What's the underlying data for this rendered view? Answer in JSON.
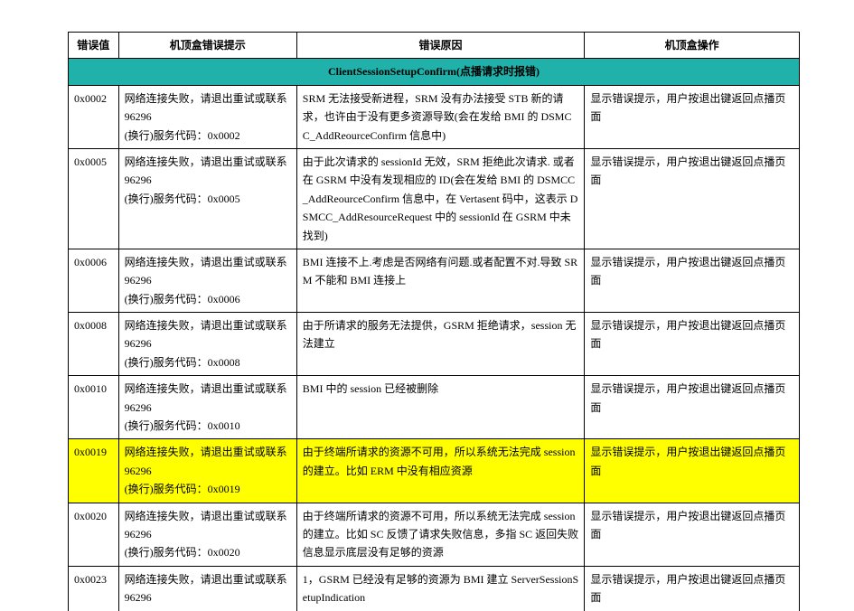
{
  "colors": {
    "section_bg": "#20b2aa",
    "highlight_bg": "#ffff00",
    "border": "#000000",
    "text": "#000000"
  },
  "table": {
    "headers": {
      "code": "错误值",
      "prompt": "机顶盒错误提示",
      "reason": "错误原因",
      "action": "机顶盒操作"
    },
    "section_title": "ClientSessionSetupConfirm(点播请求时报错)",
    "rows": [
      {
        "code": "0x0002",
        "prompt": "网络连接失败，请退出重试或联系96296\n(换行)服务代码：0x0002",
        "reason": "SRM 无法接受新进程，SRM 没有办法接受 STB 新的请求，也许由于没有更多资源导致(会在发给 BMI 的 DSMCC_AddReourceConfirm 信息中)",
        "action": "显示错误提示，用户按退出键返回点播页面",
        "highlight": false,
        "reason_valign": "top"
      },
      {
        "code": "0x0005",
        "prompt": "网络连接失败，请退出重试或联系96296\n(换行)服务代码：0x0005",
        "reason": "由于此次请求的 sessionId 无效，SRM 拒绝此次请求. 或者在 GSRM 中没有发现相应的 ID(会在发给 BMI 的 DSMCC_AddReourceConfirm 信息中，在 Vertasent 码中，这表示 DSMCC_AddResourceRequest 中的 sessionId 在 GSRM 中未找到)",
        "action": "显示错误提示，用户按退出键返回点播页面",
        "highlight": false,
        "reason_valign": "top"
      },
      {
        "code": "0x0006",
        "prompt": "网络连接失败，请退出重试或联系96296\n(换行)服务代码：0x0006",
        "reason": "BMI 连接不上.考虑是否网络有问题.或者配置不对.导致 SRM 不能和 BMI 连接上",
        "action": "显示错误提示，用户按退出键返回点播页面",
        "highlight": false,
        "reason_valign": "top"
      },
      {
        "code": "0x0008",
        "prompt": "网络连接失败，请退出重试或联系96296\n(换行)服务代码：0x0008",
        "reason": "由于所请求的服务无法提供，GSRM 拒绝请求，session 无法建立",
        "action": "显示错误提示，用户按退出键返回点播页面",
        "highlight": false,
        "reason_valign": "middle"
      },
      {
        "code": "0x0010",
        "prompt": "网络连接失败，请退出重试或联系96296\n(换行)服务代码：0x0010",
        "reason": "BMI 中的 session 已经被删除",
        "action": "显示错误提示，用户按退出键返回点播页面",
        "highlight": false,
        "reason_valign": "middle"
      },
      {
        "code": "0x0019",
        "prompt": "网络连接失败，请退出重试或联系96296\n(换行)服务代码：0x0019",
        "reason": "由于终端所请求的资源不可用，所以系统无法完成 session 的建立。比如 ERM 中没有相应资源",
        "action": "显示错误提示，用户按退出键返回点播页面",
        "highlight": true,
        "reason_valign": "top"
      },
      {
        "code": "0x0020",
        "prompt": "网络连接失败，请退出重试或联系96296\n(换行)服务代码：0x0020",
        "reason": "由于终端所请求的资源不可用，所以系统无法完成 session 的建立。比如 SC 反馈了请求失败信息，多指 SC 返回失败信息显示底层没有足够的资源",
        "action": "显示错误提示，用户按退出键返回点播页面",
        "highlight": false,
        "reason_valign": "top"
      },
      {
        "code": "0x0023",
        "prompt": "网络连接失败，请退出重试或联系96296",
        "reason": "1，GSRM 已经没有足够的资源为 BMI 建立 ServerSessionSetupIndication",
        "action": "显示错误提示，用户按退出键返回点播页面",
        "highlight": false,
        "reason_valign": "top",
        "partial": true
      }
    ]
  }
}
